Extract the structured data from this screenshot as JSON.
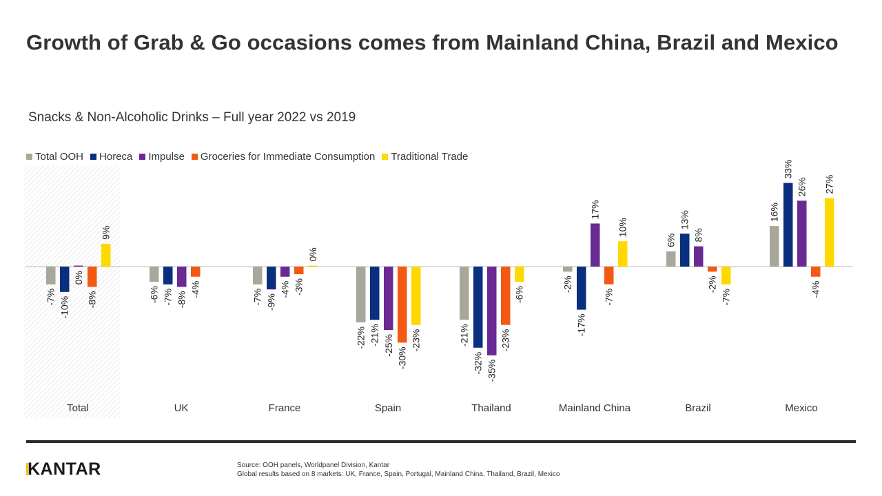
{
  "title": "Growth of Grab & Go occasions comes from Mainland China, Brazil and Mexico",
  "subtitle": "Snacks & Non-Alcoholic Drinks – Full year 2022 vs 2019",
  "footer": {
    "brand": "KANTAR",
    "source_line1": "Source: OOH panels, Worldpanel Division, Kantar",
    "source_line2": "Global results based on 8 markets: UK, France, Spain, Portugal, Mainland China, Thailand, Brazil, Mexico"
  },
  "colors": {
    "total_ooh": "#a8a89a",
    "horeca": "#0a2f7e",
    "impulse": "#6a2a93",
    "groceries": "#f25a14",
    "traditional": "#ffd800",
    "axis": "#bbbbbb",
    "highlight_hatch": "#dddddd"
  },
  "chart_data": {
    "type": "bar",
    "title": "Snacks & Non-Alcoholic Drinks – Full year 2022 vs 2019",
    "xlabel": "",
    "ylabel": "",
    "ylim": [
      -40,
      40
    ],
    "legend_position": "top-left",
    "highlighted_category": "Total",
    "categories": [
      "Total",
      "UK",
      "France",
      "Spain",
      "Thailand",
      "Mainland China",
      "Brazil",
      "Mexico"
    ],
    "series": [
      {
        "name": "Total OOH",
        "color_key": "total_ooh",
        "values": [
          -7,
          -6,
          -7,
          -22,
          -21,
          -2,
          6,
          16
        ],
        "labels": [
          "-7%",
          "-6%",
          "-7%",
          "-22%",
          "-21%",
          "-2%",
          "6%",
          "16%"
        ]
      },
      {
        "name": "Horeca",
        "color_key": "horeca",
        "values": [
          -10,
          -7,
          -9,
          -21,
          -32,
          -17,
          13,
          33
        ],
        "labels": [
          "-10%",
          "-7%",
          "-9%",
          "-21%",
          "-32%",
          "-17%",
          "13%",
          "33%"
        ]
      },
      {
        "name": "Impulse",
        "color_key": "impulse",
        "values": [
          0,
          -8,
          -4,
          -25,
          -35,
          17,
          8,
          26
        ],
        "labels": [
          "0%",
          "-8%",
          "-4%",
          "-25%",
          "-35%",
          "17%",
          "8%",
          "26%"
        ]
      },
      {
        "name": "Groceries for Immediate Consumption",
        "color_key": "groceries",
        "values": [
          -8,
          -4,
          -3,
          -30,
          -23,
          -7,
          -2,
          -4
        ],
        "labels": [
          "-8%",
          "-4%",
          "-3%",
          "-30%",
          "-23%",
          "-7%",
          "-2%",
          "-4%"
        ]
      },
      {
        "name": "Traditional Trade",
        "color_key": "traditional",
        "values": [
          9,
          null,
          0,
          -23,
          -6,
          10,
          -7,
          27
        ],
        "labels": [
          "9%",
          null,
          "0%",
          "-23%",
          "-6%",
          "10%",
          "-7%",
          "27%"
        ]
      }
    ]
  }
}
